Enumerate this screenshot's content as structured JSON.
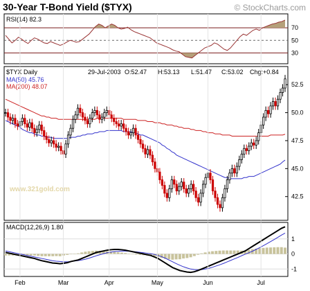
{
  "header": {
    "title": "30-Year T-Bond Yield ($TYX)",
    "source": "© StockCharts.com"
  },
  "colors": {
    "price_up": "#000000",
    "price_down": "#cc0000",
    "ma50": "#3333cc",
    "ma200": "#cc2222",
    "rsi_line": "#993333",
    "rsi_fill": "#b5a07a",
    "macd_hist": "#c8c39c",
    "signal": "#3333cc",
    "border": "#000000"
  },
  "watermark": "www.321gold.com",
  "chart_data": [
    {
      "type": "line",
      "name": "rsi",
      "label": "RSI(14) 82.3",
      "ylim": [
        15,
        90
      ],
      "levels": [
        70,
        50,
        30
      ],
      "ticks": [
        "70",
        "50",
        "30"
      ],
      "values": [
        58,
        52,
        46,
        50,
        55,
        52,
        48,
        45,
        50,
        54,
        52,
        49,
        46,
        45,
        48,
        46,
        44,
        42,
        44,
        47,
        50,
        49,
        47,
        48,
        52,
        56,
        60,
        66,
        72,
        76,
        74,
        70,
        73,
        76,
        74,
        70,
        68,
        69,
        71,
        67,
        64,
        62,
        60,
        58,
        56,
        54,
        50,
        46,
        44,
        42,
        40,
        38,
        35,
        33,
        32,
        28,
        24,
        23,
        22,
        26,
        30,
        34,
        38,
        40,
        42,
        46,
        44,
        40,
        36,
        34,
        38,
        44,
        50,
        56,
        60,
        58,
        62,
        66,
        68,
        66,
        70,
        72,
        74,
        76,
        77,
        79,
        80,
        82.3
      ]
    },
    {
      "type": "candlestick",
      "name": "price",
      "symbol": "$TYX Daily",
      "date": "29-Jul-2003",
      "open_label": "O:52.47",
      "high_label": "H:53.13",
      "low_label": "L:51.47",
      "close_label": "C:53.02",
      "change_label": "Chg:+0.84",
      "ylim": [
        40.5,
        54.0
      ],
      "ticks": [
        "52.5",
        "50.0",
        "47.5",
        "45.0",
        "42.5"
      ],
      "x_labels": [
        "Feb",
        "Mar",
        "Apr",
        "May",
        "Jun",
        "Jul"
      ],
      "x_label_index": [
        6,
        24,
        43,
        63,
        84,
        106
      ],
      "close": [
        50.0,
        49.6,
        49.3,
        49.5,
        49.0,
        48.8,
        49.2,
        49.5,
        49.0,
        48.7,
        49.1,
        48.6,
        48.2,
        48.5,
        48.9,
        48.4,
        47.9,
        47.6,
        47.3,
        47.5,
        47.2,
        46.9,
        47.0,
        46.6,
        46.3,
        47.2,
        48.0,
        48.6,
        49.4,
        49.8,
        50.4,
        50.0,
        49.6,
        49.3,
        49.0,
        49.5,
        50.0,
        50.2,
        49.8,
        49.4,
        49.6,
        50.0,
        50.2,
        49.8,
        49.5,
        49.2,
        49.0,
        48.8,
        49.0,
        48.6,
        48.3,
        48.0,
        48.2,
        48.6,
        48.0,
        47.6,
        47.2,
        46.8,
        46.3,
        46.7,
        46.2,
        45.6,
        45.0,
        44.7,
        44.0,
        43.5,
        42.8,
        42.4,
        43.2,
        44.0,
        43.6,
        43.0,
        43.4,
        43.8,
        43.2,
        42.8,
        43.2,
        43.6,
        43.0,
        42.4,
        42.0,
        42.8,
        43.6,
        44.2,
        44.6,
        44.0,
        43.0,
        42.4,
        41.8,
        41.5,
        42.4,
        43.2,
        44.0,
        44.6,
        45.0,
        44.6,
        45.2,
        45.8,
        46.3,
        46.8,
        46.6,
        47.0,
        47.3,
        47.1,
        47.5,
        48.2,
        48.9,
        49.6,
        50.2,
        49.9,
        50.6,
        51.0,
        50.6,
        51.2,
        51.8,
        52.2,
        53.02
      ],
      "ma50": {
        "label": "MA(50) 45.76",
        "values": [
          49.3,
          49.2,
          49.1,
          49.0,
          48.9,
          48.8,
          48.7,
          48.5,
          48.4,
          48.3,
          48.2,
          48.2,
          48.1,
          48.0,
          48.0,
          47.9,
          47.9,
          47.8,
          47.8,
          47.8,
          47.7,
          47.7,
          47.7,
          47.7,
          47.7,
          47.7,
          47.7,
          47.8,
          47.8,
          47.8,
          47.9,
          47.9,
          48.0,
          48.0,
          48.1,
          48.1,
          48.1,
          48.2,
          48.2,
          48.3,
          48.3,
          48.3,
          48.4,
          48.4,
          48.4,
          48.4,
          48.4,
          48.4,
          48.4,
          48.3,
          48.3,
          48.3,
          48.3,
          48.2,
          48.2,
          48.1,
          48.0,
          48.0,
          47.9,
          47.8,
          47.7,
          47.6,
          47.5,
          47.4,
          47.3,
          47.1,
          47.0,
          46.8,
          46.7,
          46.5,
          46.4,
          46.2,
          46.1,
          46.0,
          45.9,
          45.8,
          45.7,
          45.6,
          45.5,
          45.4,
          45.3,
          45.2,
          45.1,
          45.0,
          44.9,
          44.8,
          44.7,
          44.6,
          44.5,
          44.4,
          44.3,
          44.2,
          44.2,
          44.1,
          44.1,
          44.1,
          44.1,
          44.1,
          44.1,
          44.2,
          44.2,
          44.3,
          44.3,
          44.3,
          44.4,
          44.5,
          44.6,
          44.7,
          44.8,
          44.9,
          45.0,
          45.1,
          45.2,
          45.3,
          45.4,
          45.6,
          45.76
        ]
      },
      "ma200": {
        "label": "MA(200) 48.07",
        "values": [
          51.2,
          51.1,
          51.0,
          50.9,
          50.8,
          50.7,
          50.6,
          50.5,
          50.4,
          50.3,
          50.2,
          50.1,
          50.0,
          49.9,
          49.8,
          49.7,
          49.7,
          49.6,
          49.6,
          49.5,
          49.5,
          49.5,
          49.4,
          49.4,
          49.4,
          49.4,
          49.4,
          49.4,
          49.4,
          49.4,
          49.4,
          49.4,
          49.4,
          49.4,
          49.4,
          49.4,
          49.4,
          49.4,
          49.5,
          49.5,
          49.5,
          49.5,
          49.5,
          49.5,
          49.5,
          49.5,
          49.5,
          49.5,
          49.5,
          49.4,
          49.4,
          49.4,
          49.4,
          49.4,
          49.4,
          49.3,
          49.3,
          49.3,
          49.3,
          49.2,
          49.2,
          49.2,
          49.1,
          49.1,
          49.1,
          49.0,
          49.0,
          48.9,
          48.9,
          48.9,
          48.8,
          48.8,
          48.7,
          48.7,
          48.6,
          48.6,
          48.6,
          48.5,
          48.5,
          48.4,
          48.4,
          48.4,
          48.3,
          48.3,
          48.2,
          48.2,
          48.2,
          48.1,
          48.1,
          48.1,
          48.0,
          48.0,
          48.0,
          48.0,
          47.9,
          47.9,
          47.9,
          47.9,
          47.9,
          47.9,
          47.9,
          47.9,
          47.9,
          47.9,
          47.9,
          47.9,
          47.9,
          47.9,
          47.9,
          47.9,
          48.0,
          48.0,
          48.0,
          48.0,
          48.0,
          48.0,
          48.07
        ]
      }
    },
    {
      "type": "line",
      "name": "macd",
      "label": "MACD(12,26,9) 1.80",
      "ylim": [
        -1.4,
        2.0
      ],
      "ticks": [
        "1",
        "0",
        "-1"
      ],
      "macd": [
        0.1,
        0.05,
        0.0,
        -0.05,
        -0.1,
        -0.15,
        -0.2,
        -0.25,
        -0.3,
        -0.38,
        -0.45,
        -0.5,
        -0.55,
        -0.6,
        -0.62,
        -0.65,
        -0.62,
        -0.58,
        -0.5,
        -0.45,
        -0.4,
        -0.3,
        -0.2,
        -0.1,
        0.0,
        0.1,
        0.15,
        0.2,
        0.25,
        0.28,
        0.3,
        0.3,
        0.28,
        0.25,
        0.2,
        0.15,
        0.1,
        0.05,
        0.0,
        -0.05,
        -0.1,
        -0.2,
        -0.3,
        -0.45,
        -0.6,
        -0.75,
        -0.9,
        -1.0,
        -1.1,
        -1.15,
        -1.2,
        -1.22,
        -1.18,
        -1.1,
        -1.0,
        -0.9,
        -0.8,
        -0.7,
        -0.6,
        -0.5,
        -0.4,
        -0.3,
        -0.2,
        -0.1,
        0.0,
        0.1,
        0.2,
        0.35,
        0.5,
        0.65,
        0.8,
        0.95,
        1.1,
        1.25,
        1.4,
        1.55,
        1.7,
        1.8
      ],
      "signal": [
        0.2,
        0.15,
        0.1,
        0.05,
        0.0,
        -0.05,
        -0.1,
        -0.15,
        -0.2,
        -0.25,
        -0.3,
        -0.35,
        -0.4,
        -0.45,
        -0.48,
        -0.5,
        -0.52,
        -0.52,
        -0.5,
        -0.47,
        -0.44,
        -0.4,
        -0.35,
        -0.28,
        -0.2,
        -0.12,
        -0.05,
        0.02,
        0.08,
        0.12,
        0.16,
        0.18,
        0.19,
        0.19,
        0.18,
        0.16,
        0.14,
        0.11,
        0.08,
        0.05,
        0.02,
        -0.03,
        -0.1,
        -0.18,
        -0.28,
        -0.4,
        -0.52,
        -0.64,
        -0.75,
        -0.85,
        -0.93,
        -1.0,
        -1.04,
        -1.05,
        -1.04,
        -1.0,
        -0.95,
        -0.88,
        -0.8,
        -0.72,
        -0.63,
        -0.53,
        -0.43,
        -0.33,
        -0.23,
        -0.12,
        -0.02,
        0.08,
        0.18,
        0.3,
        0.42,
        0.55,
        0.68,
        0.82,
        0.96,
        1.1,
        1.25,
        1.38
      ]
    }
  ]
}
